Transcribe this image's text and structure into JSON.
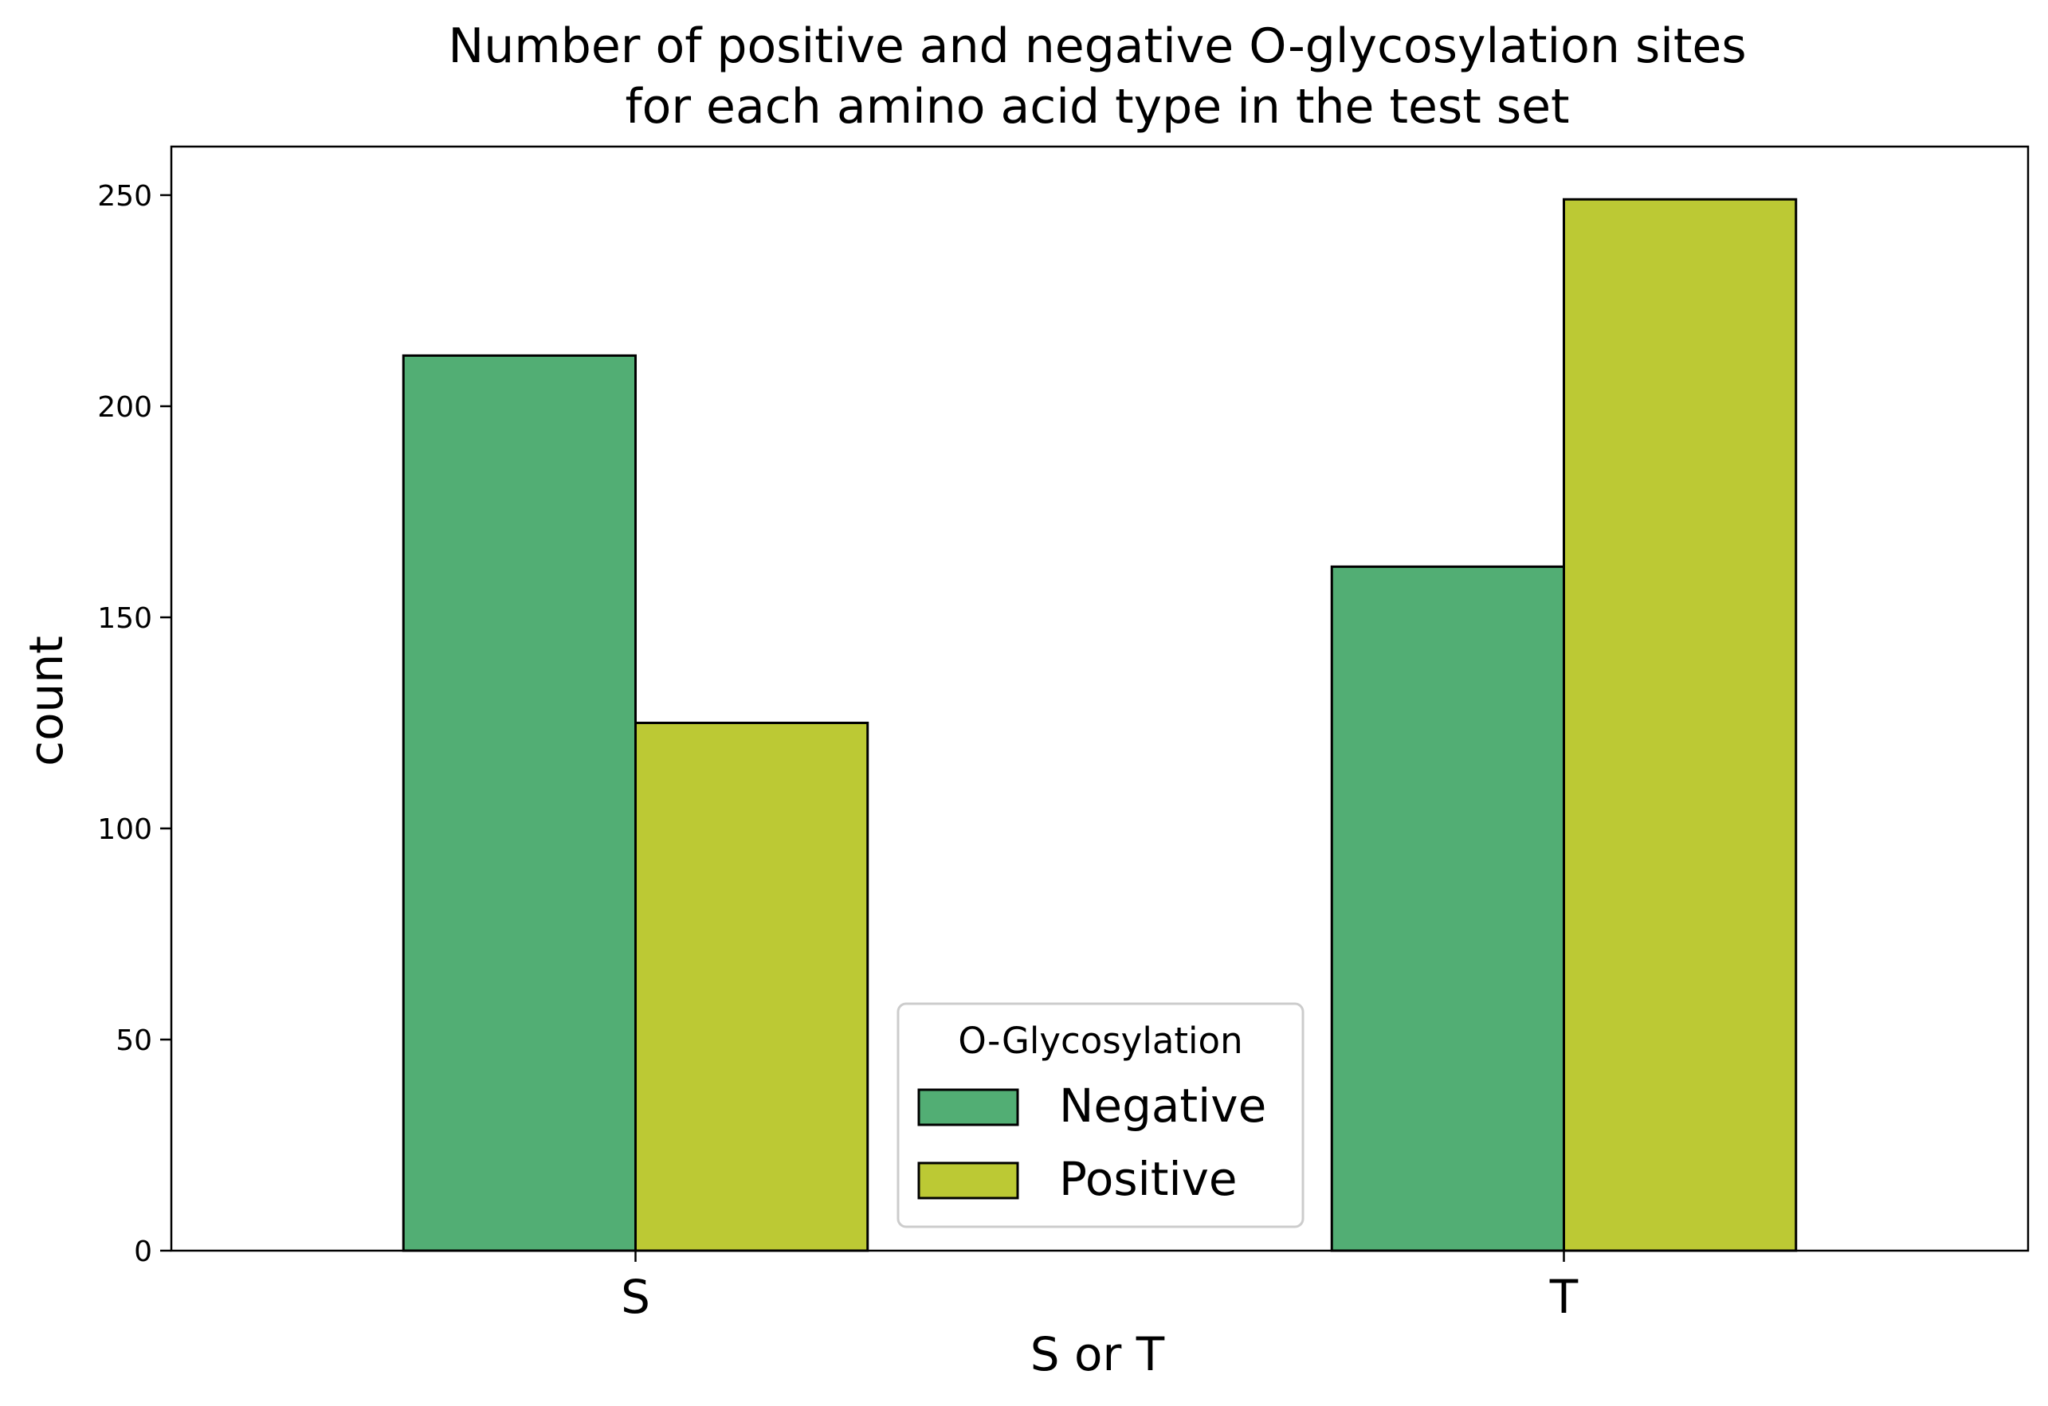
{
  "chart_data": {
    "type": "bar",
    "title_lines": [
      "Number of positive and negative O-glycosylation sites",
      "for each amino acid type in the test set"
    ],
    "xlabel": "S or T",
    "ylabel": "count",
    "categories": [
      "S",
      "T"
    ],
    "series": [
      {
        "name": "Negative",
        "values": [
          212,
          162
        ]
      },
      {
        "name": "Positive",
        "values": [
          125,
          249
        ]
      }
    ],
    "ylim": [
      0,
      261.5
    ],
    "yticks": [
      0,
      50,
      100,
      150,
      200,
      250
    ],
    "grid": false,
    "legend": {
      "title": "O-Glycosylation",
      "position": "lower-center"
    },
    "colors": {
      "Negative": "#52AE74",
      "Positive": "#BCC934",
      "bar_edge": "#000000"
    }
  }
}
